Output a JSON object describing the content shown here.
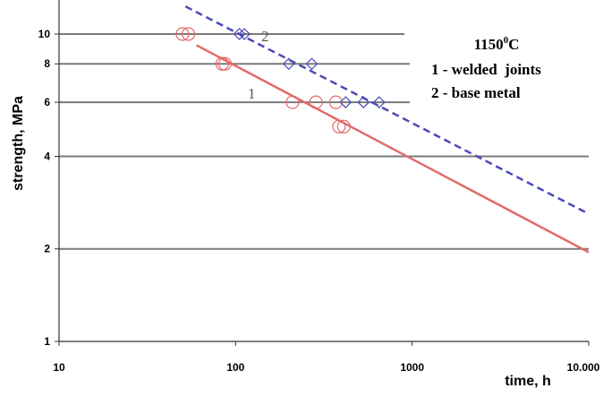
{
  "chart_data": {
    "type": "scatter",
    "x_scale": "log",
    "y_scale": "log",
    "xlabel": "time, h",
    "ylabel": "strength, MPa",
    "xlim": [
      10,
      10000
    ],
    "ylim": [
      1,
      12
    ],
    "x_ticks": [
      "10",
      "100",
      "1000",
      "10.000"
    ],
    "y_ticks": [
      "1",
      "2",
      "4",
      "6",
      "8",
      "10"
    ],
    "y_tick_values": [
      1,
      2,
      4,
      6,
      8,
      10
    ],
    "x_tick_values": [
      10,
      100,
      1000,
      10000
    ],
    "grid_y": true,
    "legend": {
      "placement": "top-right",
      "title": "1150",
      "title_sup": "0",
      "title_unit": "C",
      "entries": [
        "1 - welded  joints",
        "2 - base metal"
      ]
    },
    "series": [
      {
        "label": "1",
        "color": "#e26a6a",
        "marker": "circle",
        "line_style": "solid",
        "points": [
          {
            "x": 50,
            "y": 10
          },
          {
            "x": 54,
            "y": 10
          },
          {
            "x": 84,
            "y": 8
          },
          {
            "x": 87,
            "y": 8
          },
          {
            "x": 210,
            "y": 6
          },
          {
            "x": 285,
            "y": 6
          },
          {
            "x": 370,
            "y": 6
          },
          {
            "x": 385,
            "y": 5
          },
          {
            "x": 410,
            "y": 5
          }
        ],
        "fit": [
          {
            "x": 60,
            "y": 9.2
          },
          {
            "x": 10000,
            "y": 1.95
          }
        ]
      },
      {
        "label": "2",
        "color": "#4a4ab8",
        "marker": "diamond",
        "line_style": "dashed",
        "points": [
          {
            "x": 105,
            "y": 10
          },
          {
            "x": 112,
            "y": 10
          },
          {
            "x": 200,
            "y": 8
          },
          {
            "x": 270,
            "y": 8
          },
          {
            "x": 420,
            "y": 6
          },
          {
            "x": 530,
            "y": 6
          },
          {
            "x": 650,
            "y": 6
          }
        ],
        "fit": [
          {
            "x": 52,
            "y": 12.3
          },
          {
            "x": 10000,
            "y": 2.6
          }
        ]
      }
    ]
  }
}
